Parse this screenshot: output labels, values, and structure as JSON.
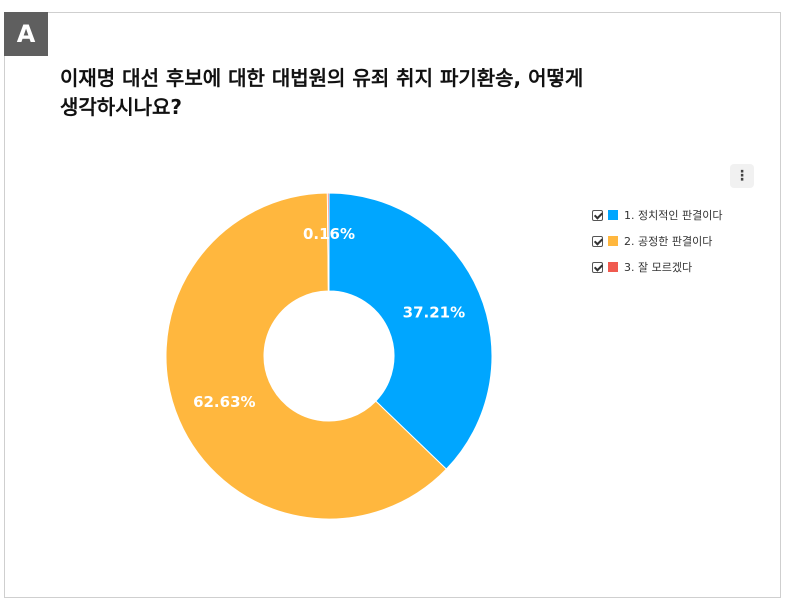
{
  "badge": {
    "label": "A"
  },
  "title_lines": [
    "이재명 대선 후보에 대한 대법원의 유죄 취지 파기환송, 어떻게",
    "생각하시나요?"
  ],
  "menu_icon": "vertical-dots-icon",
  "chart_data": {
    "type": "pie",
    "donut": true,
    "categories": [
      "1. 정치적인 판결이다",
      "2. 공정한 판결이다",
      "3. 잘 모르겠다"
    ],
    "values": [
      37.21,
      62.63,
      0.16
    ],
    "labels": [
      "37.21%",
      "62.63%",
      "0.16%"
    ],
    "colors": [
      "#00a6ff",
      "#ffb73e",
      "#f05a4f"
    ],
    "legend": {
      "position": "right",
      "checked": [
        true,
        true,
        true
      ]
    }
  }
}
